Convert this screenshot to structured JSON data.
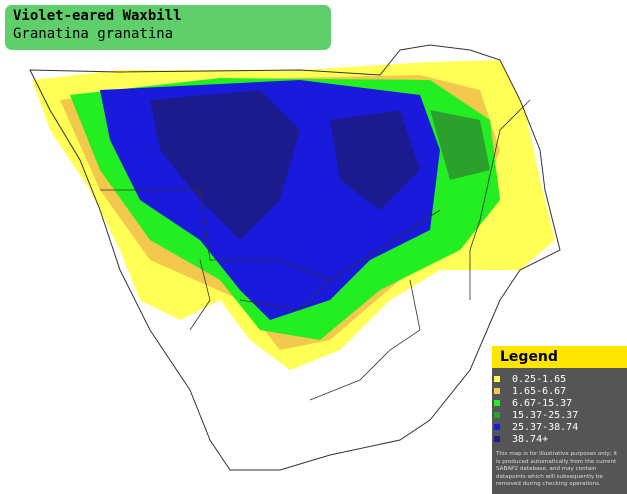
{
  "header": {
    "title": "Violet-eared Waxbill",
    "subtitle": "Granatina granatina"
  },
  "legend": {
    "title": "Legend",
    "entries": [
      {
        "label": "0.25-1.65",
        "color": "#ffff55"
      },
      {
        "label": "1.65-6.67",
        "color": "#f2c94c"
      },
      {
        "label": "6.67-15.37",
        "color": "#22ee22"
      },
      {
        "label": "15.37-25.37",
        "color": "#2ca02c"
      },
      {
        "label": "25.37-38.74",
        "color": "#1a1add"
      },
      {
        "label": "38.74+",
        "color": "#1b1b8f"
      }
    ],
    "disclaimer": "This map is for illustrative purposes only; it is produced automatically from the current SABAP2 database, and may contain datapoints which will subsequently be removed during checking operations."
  }
}
